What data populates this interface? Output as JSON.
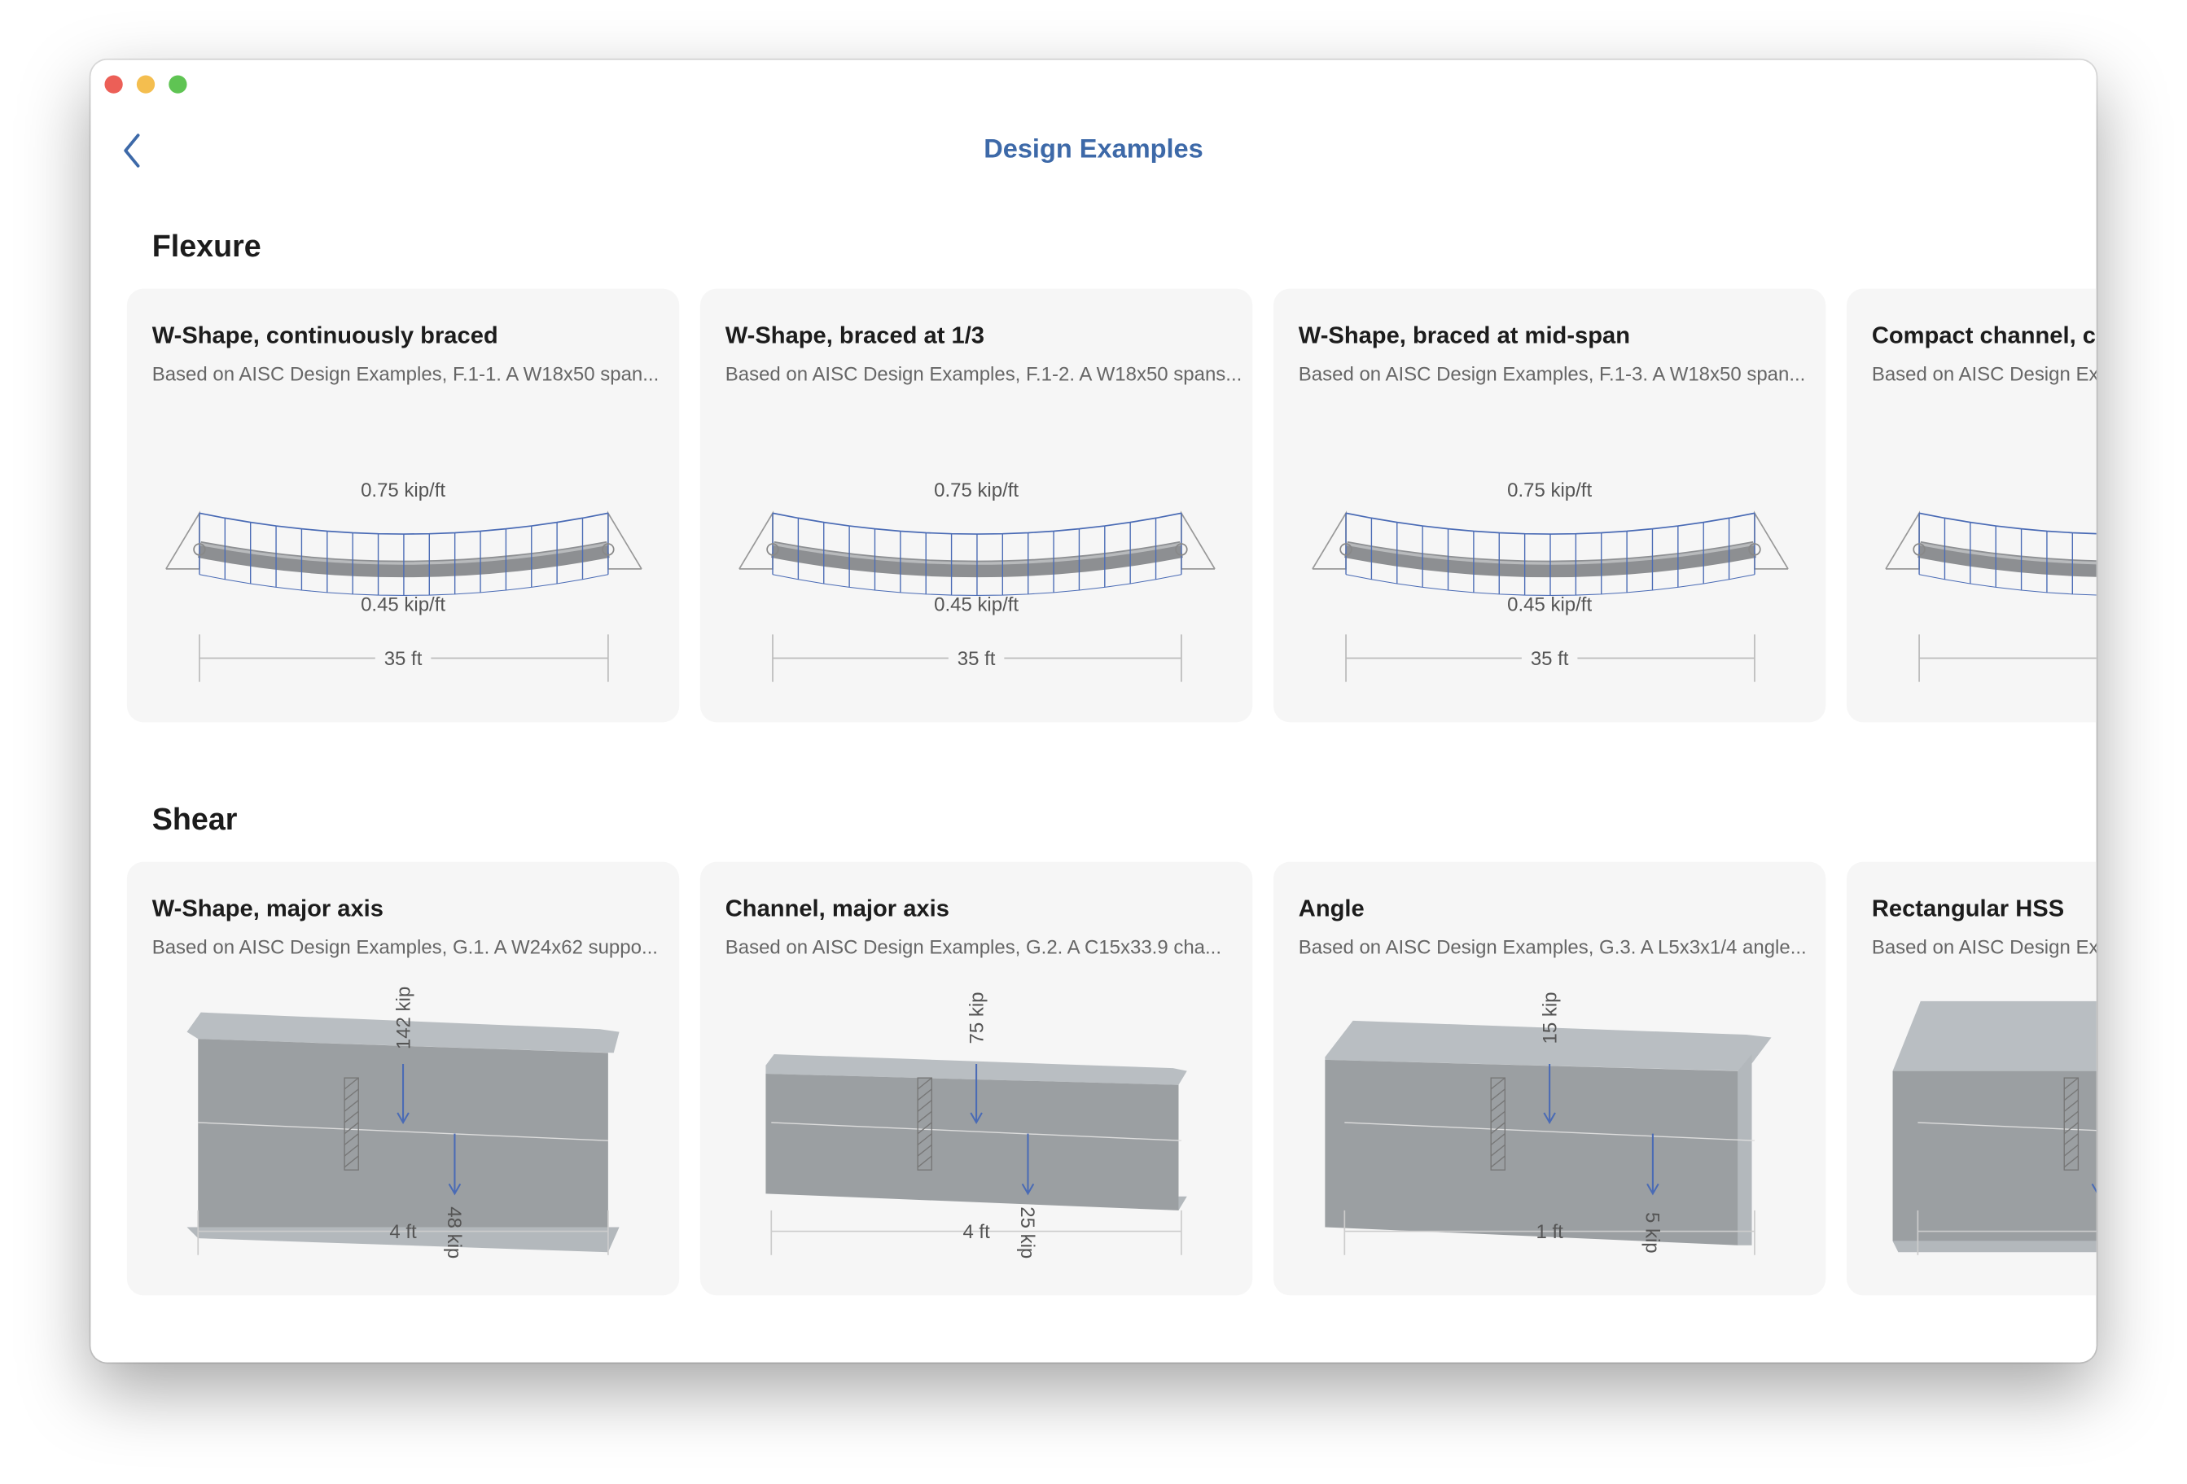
{
  "header": {
    "title": "Design Examples"
  },
  "sections": [
    {
      "name": "Flexure",
      "cards": [
        {
          "title": "W-Shape, continuously braced",
          "subtitle": "Based on AISC Design Examples, F.1-1.  A W18x50 span...",
          "diagram": {
            "type": "beam",
            "load_top": "0.75 kip/ft",
            "load_bottom": "0.45 kip/ft",
            "span": "35 ft"
          }
        },
        {
          "title": "W-Shape, braced at 1/3",
          "subtitle": "Based on AISC Design Examples, F.1-2.  A W18x50 spans...",
          "diagram": {
            "type": "beam",
            "load_top": "0.75 kip/ft",
            "load_bottom": "0.45 kip/ft",
            "span": "35 ft"
          }
        },
        {
          "title": "W-Shape, braced at mid-span",
          "subtitle": "Based on AISC Design Examples, F.1-3.  A W18x50 span...",
          "diagram": {
            "type": "beam",
            "load_top": "0.75 kip/ft",
            "load_bottom": "0.45 kip/ft",
            "span": "35 ft"
          }
        },
        {
          "title": "Compact channel, co",
          "subtitle": "Based on AISC Design Ex",
          "diagram": {
            "type": "beam"
          }
        }
      ]
    },
    {
      "name": "Shear",
      "cards": [
        {
          "title": "W-Shape, major axis",
          "subtitle": "Based on AISC Design Examples, G.1.  A W24x62 suppo...",
          "diagram": {
            "type": "shear",
            "force_top": "142 kip",
            "force_bottom": "48 kip",
            "span": "4 ft"
          }
        },
        {
          "title": "Channel, major axis",
          "subtitle": "Based on AISC Design Examples, G.2.  A C15x33.9 cha...",
          "diagram": {
            "type": "shear",
            "force_top": "75 kip",
            "force_bottom": "25 kip",
            "span": "4 ft"
          }
        },
        {
          "title": "Angle",
          "subtitle": "Based on AISC Design Examples, G.3.  A L5x3x1/4 angle...",
          "diagram": {
            "type": "shear",
            "force_top": "15 kip",
            "force_bottom": "5 kip",
            "span": "1 ft"
          }
        },
        {
          "title": "Rectangular HSS",
          "subtitle": "Based on AISC Design Ex",
          "diagram": {
            "type": "shear"
          }
        }
      ]
    }
  ]
}
